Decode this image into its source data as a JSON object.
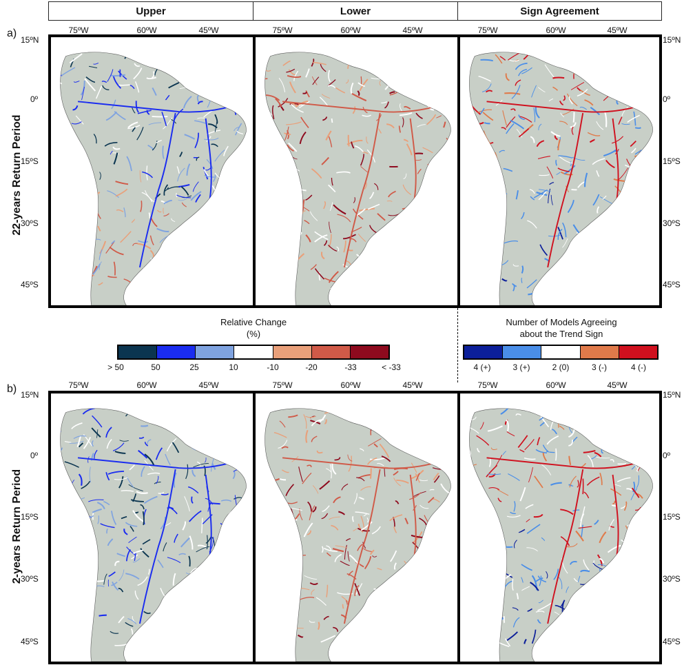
{
  "columns": [
    "Upper",
    "Lower",
    "Sign Agreement"
  ],
  "rows": [
    {
      "letter": "a)",
      "label": "22-years Return Period"
    },
    {
      "letter": "b)",
      "label": "2-years Return Period"
    }
  ],
  "lon_ticks": [
    "75ºW",
    "60ºW",
    "45ºW"
  ],
  "lat_ticks": [
    "15ºN",
    "0º",
    "15ºS",
    "30ºS",
    "45ºS"
  ],
  "legend_relative": {
    "title_line1": "Relative Change",
    "title_line2": "(%)",
    "labels": [
      "> 50",
      "50",
      "25",
      "10",
      "-10",
      "-20",
      "-33",
      "< -33"
    ],
    "colors": [
      "#0b3550",
      "#1a2cf0",
      "#7fa3e0",
      "#ffffff",
      "#e9a07a",
      "#d05a48",
      "#8e0a1e"
    ]
  },
  "legend_agreement": {
    "title_line1": "Number of Models Agreeing",
    "title_line2": "about the Trend Sign",
    "labels": [
      "4 (+)",
      "3 (+)",
      "2 (0)",
      "3 (-)",
      "4 (-)"
    ],
    "colors": [
      "#0c1f9a",
      "#4a8ee8",
      "#ffffff",
      "#e07a4a",
      "#d0101e"
    ]
  },
  "land_color": "#c8cfc7",
  "map_icon": "south-america-river-network"
}
